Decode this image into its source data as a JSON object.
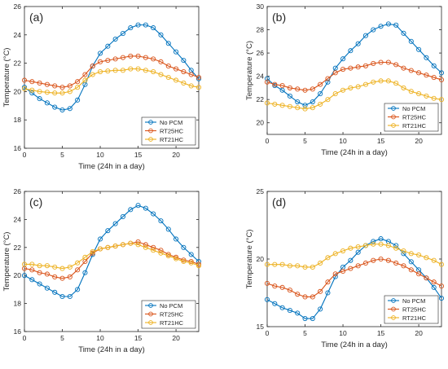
{
  "chart_data": [
    {
      "type": "line",
      "panel_label": "(a)",
      "xlabel": "Time (24h in a day)",
      "ylabel": "Temperature (°C)",
      "xlim": [
        0,
        23
      ],
      "ylim": [
        16,
        26
      ],
      "xticks": [
        0,
        5,
        10,
        15,
        20
      ],
      "yticks": [
        16,
        18,
        20,
        22,
        24,
        26
      ],
      "legend_position": "bottom-right",
      "x": [
        0,
        1,
        2,
        3,
        4,
        5,
        6,
        7,
        8,
        9,
        10,
        11,
        12,
        13,
        14,
        15,
        16,
        17,
        18,
        19,
        20,
        21,
        22,
        23
      ],
      "series": [
        {
          "name": "No PCM",
          "color": "#0072BD",
          "values": [
            20.3,
            19.9,
            19.5,
            19.2,
            18.9,
            18.7,
            18.8,
            19.4,
            20.5,
            21.8,
            22.7,
            23.2,
            23.7,
            24.1,
            24.5,
            24.7,
            24.7,
            24.5,
            24.0,
            23.4,
            22.8,
            22.2,
            21.5,
            20.9
          ]
        },
        {
          "name": "RT25HC",
          "color": "#D95319",
          "values": [
            20.8,
            20.7,
            20.6,
            20.5,
            20.4,
            20.3,
            20.4,
            20.7,
            21.2,
            21.8,
            22.1,
            22.2,
            22.3,
            22.4,
            22.5,
            22.5,
            22.4,
            22.3,
            22.1,
            21.8,
            21.6,
            21.4,
            21.2,
            21.0
          ]
        },
        {
          "name": "RT21HC",
          "color": "#EDB120",
          "values": [
            20.2,
            20.1,
            20.0,
            19.95,
            19.9,
            19.9,
            20.0,
            20.3,
            20.8,
            21.2,
            21.4,
            21.45,
            21.5,
            21.5,
            21.6,
            21.6,
            21.5,
            21.4,
            21.2,
            21.0,
            20.8,
            20.6,
            20.4,
            20.3
          ]
        }
      ]
    },
    {
      "type": "line",
      "panel_label": "(b)",
      "xlabel": "Time (24h in a day)",
      "ylabel": "Temperature (°C)",
      "xlim": [
        0,
        23
      ],
      "ylim": [
        19,
        30
      ],
      "xticks": [
        0,
        5,
        10,
        15,
        20
      ],
      "yticks": [
        20,
        22,
        24,
        26,
        28,
        30
      ],
      "legend_position": "bottom-right",
      "x": [
        0,
        1,
        2,
        3,
        4,
        5,
        6,
        7,
        8,
        9,
        10,
        11,
        12,
        13,
        14,
        15,
        16,
        17,
        18,
        19,
        20,
        21,
        22,
        23
      ],
      "series": [
        {
          "name": "No PCM",
          "color": "#0072BD",
          "values": [
            23.8,
            23.2,
            22.8,
            22.3,
            21.8,
            21.5,
            21.8,
            22.5,
            23.5,
            24.7,
            25.5,
            26.2,
            26.8,
            27.5,
            28.0,
            28.3,
            28.5,
            28.4,
            27.7,
            27.0,
            26.3,
            25.6,
            24.9,
            24.3
          ]
        },
        {
          "name": "RT25HC",
          "color": "#D95319",
          "values": [
            23.5,
            23.3,
            23.2,
            23.0,
            22.9,
            22.8,
            22.9,
            23.3,
            23.8,
            24.3,
            24.6,
            24.7,
            24.8,
            24.9,
            25.1,
            25.2,
            25.2,
            25.0,
            24.7,
            24.5,
            24.3,
            24.1,
            23.9,
            23.7
          ]
        },
        {
          "name": "RT21HC",
          "color": "#EDB120",
          "values": [
            21.7,
            21.6,
            21.5,
            21.4,
            21.3,
            21.2,
            21.3,
            21.6,
            22.0,
            22.5,
            22.8,
            23.0,
            23.1,
            23.3,
            23.5,
            23.6,
            23.6,
            23.4,
            23.0,
            22.7,
            22.5,
            22.3,
            22.1,
            22.0
          ]
        }
      ]
    },
    {
      "type": "line",
      "panel_label": "(c)",
      "xlabel": "Time (24h in a day)",
      "ylabel": "Temperature (°C)",
      "xlim": [
        0,
        23
      ],
      "ylim": [
        16,
        26
      ],
      "xticks": [
        0,
        5,
        10,
        15,
        20
      ],
      "yticks": [
        16,
        18,
        20,
        22,
        24,
        26
      ],
      "legend_position": "bottom-right",
      "x": [
        0,
        1,
        2,
        3,
        4,
        5,
        6,
        7,
        8,
        9,
        10,
        11,
        12,
        13,
        14,
        15,
        16,
        17,
        18,
        19,
        20,
        21,
        22,
        23
      ],
      "series": [
        {
          "name": "No PCM",
          "color": "#0072BD",
          "values": [
            20.0,
            19.7,
            19.4,
            19.1,
            18.8,
            18.5,
            18.5,
            19.0,
            20.2,
            21.5,
            22.6,
            23.2,
            23.7,
            24.2,
            24.7,
            25.0,
            24.8,
            24.4,
            23.9,
            23.3,
            22.6,
            22.0,
            21.5,
            21.0
          ]
        },
        {
          "name": "RT25HC",
          "color": "#D95319",
          "values": [
            20.5,
            20.4,
            20.2,
            20.1,
            19.9,
            19.8,
            19.9,
            20.4,
            21.0,
            21.6,
            21.9,
            22.0,
            22.1,
            22.2,
            22.3,
            22.4,
            22.2,
            22.0,
            21.8,
            21.5,
            21.3,
            21.1,
            21.0,
            20.8
          ]
        },
        {
          "name": "RT21HC",
          "color": "#EDB120",
          "values": [
            20.8,
            20.8,
            20.7,
            20.7,
            20.6,
            20.5,
            20.6,
            20.9,
            21.3,
            21.7,
            21.9,
            22.0,
            22.1,
            22.2,
            22.3,
            22.2,
            22.0,
            21.8,
            21.6,
            21.4,
            21.2,
            21.0,
            20.9,
            20.7
          ]
        }
      ]
    },
    {
      "type": "line",
      "panel_label": "(d)",
      "xlabel": "Time (24h in a day)",
      "ylabel": "Temperature (°C)",
      "xlim": [
        0,
        23
      ],
      "ylim": [
        15,
        25
      ],
      "xticks": [
        0,
        5,
        10,
        15,
        20
      ],
      "yticks": [
        15,
        20,
        25
      ],
      "legend_position": "bottom-right",
      "x": [
        0,
        1,
        2,
        3,
        4,
        5,
        6,
        7,
        8,
        9,
        10,
        11,
        12,
        13,
        14,
        15,
        16,
        17,
        18,
        19,
        20,
        21,
        22,
        23
      ],
      "series": [
        {
          "name": "No PCM",
          "color": "#0072BD",
          "values": [
            17.0,
            16.7,
            16.4,
            16.2,
            16.0,
            15.6,
            15.6,
            16.3,
            17.5,
            18.7,
            19.4,
            19.9,
            20.5,
            21.0,
            21.3,
            21.5,
            21.3,
            21.0,
            20.4,
            19.8,
            19.2,
            18.6,
            17.9,
            17.1
          ]
        },
        {
          "name": "RT25HC",
          "color": "#D95319",
          "values": [
            18.2,
            18.0,
            17.9,
            17.7,
            17.4,
            17.2,
            17.2,
            17.6,
            18.3,
            18.9,
            19.1,
            19.3,
            19.5,
            19.7,
            19.9,
            20.0,
            19.9,
            19.7,
            19.5,
            19.2,
            18.9,
            18.6,
            18.3,
            18.0
          ]
        },
        {
          "name": "RT21HC",
          "color": "#EDB120",
          "values": [
            19.6,
            19.6,
            19.6,
            19.5,
            19.5,
            19.4,
            19.4,
            19.7,
            20.1,
            20.4,
            20.6,
            20.8,
            20.9,
            21.0,
            21.1,
            21.1,
            21.0,
            20.8,
            20.6,
            20.4,
            20.3,
            20.1,
            19.9,
            19.6
          ]
        }
      ]
    }
  ]
}
